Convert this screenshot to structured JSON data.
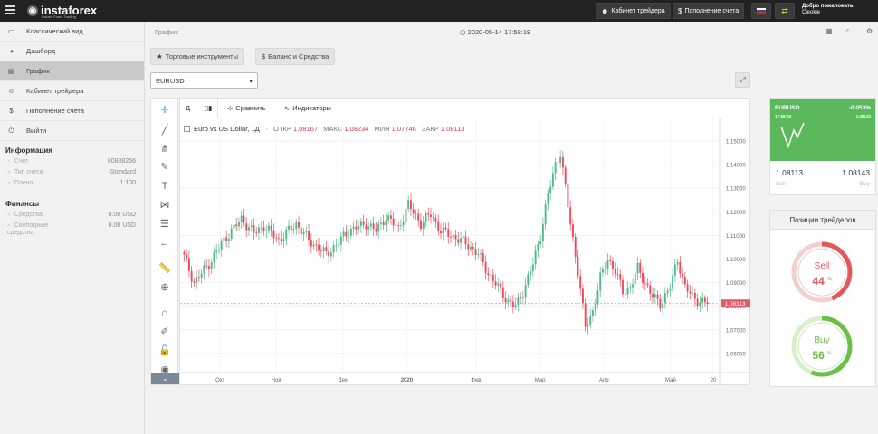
{
  "topbar": {
    "logo_text": "instaforex",
    "logo_sub": "Instant Forex Trading",
    "cabinet_btn": "Кабинет трейдера",
    "deposit_btn": "Пополнение счета",
    "welcome": "Добро пожаловать!",
    "user": "Cleokie"
  },
  "sidebar": {
    "items": [
      {
        "label": "Классический вид",
        "icon": "desktop-icon",
        "glyph": "▭"
      },
      {
        "label": "Дашборд",
        "icon": "dashboard-icon",
        "glyph": "◕"
      },
      {
        "label": "График",
        "icon": "chart-icon",
        "glyph": "▤"
      },
      {
        "label": "Кабинет трейдера",
        "icon": "user-icon",
        "glyph": "☺"
      },
      {
        "label": "Пополнение счета",
        "icon": "dollar-icon",
        "glyph": "$"
      },
      {
        "label": "Выйти",
        "icon": "power-icon",
        "glyph": "⏻"
      }
    ],
    "info_title": "Информация",
    "info": [
      {
        "label": "Счет",
        "value": "80888256"
      },
      {
        "label": "Тип счета",
        "value": "Standard"
      },
      {
        "label": "Плечо",
        "value": "1:100"
      }
    ],
    "fin_title": "Финансы",
    "fin": [
      {
        "label": "Средства",
        "value": "0.00 USD"
      },
      {
        "label": "Свободные средства",
        "value": "0.00 USD"
      }
    ]
  },
  "main": {
    "breadcrumb": "График",
    "datetime": "2020-05-14 17:58:19",
    "tab_instruments": "Торговые инструменты",
    "tab_balance": "Баланс и Средства",
    "symbol_select": "EURUSD"
  },
  "chart_toolbar": {
    "interval": "Д",
    "compare": "Сравнить",
    "indicators": "Индикаторы"
  },
  "legend": {
    "title": "Euro vs US Dollar, 1Д",
    "open_label": "ОТКР",
    "open": "1.08167",
    "high_label": "МАКС",
    "high": "1.08234",
    "low_label": "МИН",
    "low": "1.07746",
    "close_label": "ЗАКР",
    "close": "1.08113"
  },
  "chart_data": {
    "type": "candlestick",
    "symbol": "EURUSD",
    "title": "Euro vs US Dollar, 1Д",
    "x_ticks": [
      "Окт",
      "Ноя",
      "Дек",
      "2020",
      "Фев",
      "Мар",
      "Апр",
      "Май",
      "20"
    ],
    "y_ticks": [
      "1.15000",
      "1.14000",
      "1.13000",
      "1.12000",
      "1.11000",
      "1.10000",
      "1.09000",
      "1.08000",
      "1.07000",
      "1.06000"
    ],
    "ylim": [
      1.0565,
      1.1565
    ],
    "last_price": "1.08113",
    "colors": {
      "up": "#53b987",
      "down": "#eb4d5c"
    },
    "anchors": [
      {
        "i": 0,
        "p": 1.101
      },
      {
        "i": 4,
        "p": 1.09
      },
      {
        "i": 10,
        "p": 1.098
      },
      {
        "i": 16,
        "p": 1.108
      },
      {
        "i": 23,
        "p": 1.117
      },
      {
        "i": 28,
        "p": 1.111
      },
      {
        "i": 32,
        "p": 1.114
      },
      {
        "i": 38,
        "p": 1.108
      },
      {
        "i": 45,
        "p": 1.115
      },
      {
        "i": 50,
        "p": 1.108
      },
      {
        "i": 57,
        "p": 1.102
      },
      {
        "i": 62,
        "p": 1.107
      },
      {
        "i": 66,
        "p": 1.112
      },
      {
        "i": 73,
        "p": 1.115
      },
      {
        "i": 77,
        "p": 1.112
      },
      {
        "i": 81,
        "p": 1.118
      },
      {
        "i": 86,
        "p": 1.113
      },
      {
        "i": 90,
        "p": 1.123
      },
      {
        "i": 95,
        "p": 1.115
      },
      {
        "i": 99,
        "p": 1.119
      },
      {
        "i": 103,
        "p": 1.112
      },
      {
        "i": 109,
        "p": 1.109
      },
      {
        "i": 114,
        "p": 1.106
      },
      {
        "i": 118,
        "p": 1.102
      },
      {
        "i": 122,
        "p": 1.094
      },
      {
        "i": 126,
        "p": 1.088
      },
      {
        "i": 130,
        "p": 1.082
      },
      {
        "i": 133,
        "p": 1.08
      },
      {
        "i": 136,
        "p": 1.086
      },
      {
        "i": 140,
        "p": 1.098
      },
      {
        "i": 143,
        "p": 1.11
      },
      {
        "i": 146,
        "p": 1.127
      },
      {
        "i": 149,
        "p": 1.14
      },
      {
        "i": 151,
        "p": 1.145
      },
      {
        "i": 153,
        "p": 1.13
      },
      {
        "i": 155,
        "p": 1.115
      },
      {
        "i": 158,
        "p": 1.095
      },
      {
        "i": 161,
        "p": 1.071
      },
      {
        "i": 164,
        "p": 1.078
      },
      {
        "i": 167,
        "p": 1.092
      },
      {
        "i": 170,
        "p": 1.1
      },
      {
        "i": 173,
        "p": 1.095
      },
      {
        "i": 176,
        "p": 1.086
      },
      {
        "i": 179,
        "p": 1.088
      },
      {
        "i": 182,
        "p": 1.096
      },
      {
        "i": 185,
        "p": 1.09
      },
      {
        "i": 188,
        "p": 1.084
      },
      {
        "i": 191,
        "p": 1.081
      },
      {
        "i": 195,
        "p": 1.088
      },
      {
        "i": 198,
        "p": 1.1
      },
      {
        "i": 201,
        "p": 1.088
      },
      {
        "i": 204,
        "p": 1.084
      },
      {
        "i": 207,
        "p": 1.082
      },
      {
        "i": 210,
        "p": 1.081
      }
    ]
  },
  "ticker": {
    "symbol": "EURUSD",
    "change": "-0.053%",
    "time": "17:58:23",
    "ref": "1.08133",
    "sell": "1.08113",
    "buy": "1.08143",
    "sell_label": "Sell",
    "buy_label": "Buy"
  },
  "positions": {
    "title": "Позиции трейдеров",
    "sell_label": "Sell",
    "sell_pct": "44",
    "sell_value": 0.44,
    "buy_label": "Buy",
    "buy_pct": "56",
    "buy_value": 0.56,
    "pct_sign": "%",
    "sell_color": "#e05a5a",
    "buy_color": "#6cc04a"
  }
}
